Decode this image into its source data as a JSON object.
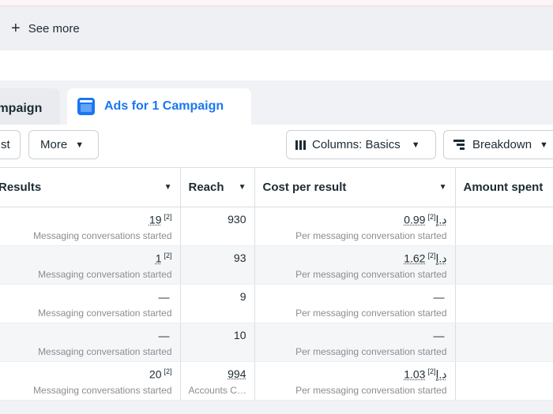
{
  "see_more": {
    "label": "See more"
  },
  "tabs": [
    {
      "label": "Campaign"
    },
    {
      "label": "Ads for 1 Campaign"
    }
  ],
  "toolbar": {
    "first_label": "st",
    "more_label": "More",
    "columns_label": "Columns: Basics",
    "breakdown_label": "Breakdown"
  },
  "table": {
    "headers": {
      "results": "Results",
      "reach": "Reach",
      "cost_per_result": "Cost per result",
      "amount_spent": "Amount spent"
    },
    "rows": [
      {
        "results": "19",
        "results_note": "[2]",
        "results_sub": "Messaging conversations started",
        "reach": "930",
        "reach_sub": "",
        "cost": "0.99د.إ",
        "cost_note": "[2]",
        "cost_sub": "Per messaging conversation started"
      },
      {
        "results": "1",
        "results_note": "[2]",
        "results_sub": "Messaging conversation started",
        "reach": "93",
        "reach_sub": "",
        "cost": "1.62د.إ",
        "cost_note": "[2]",
        "cost_sub": "Per messaging conversation started"
      },
      {
        "results": "—",
        "results_note": "",
        "results_sub": "Messaging conversation started",
        "reach": "9",
        "reach_sub": "",
        "cost": "—",
        "cost_note": "",
        "cost_sub": "Per messaging conversation started"
      },
      {
        "results": "—",
        "results_note": "",
        "results_sub": "Messaging conversation started",
        "reach": "10",
        "reach_sub": "",
        "cost": "—",
        "cost_note": "",
        "cost_sub": "Per messaging conversation started"
      },
      {
        "results": "20",
        "results_note": "[2]",
        "results_sub": "Messaging conversations started",
        "reach": "994",
        "reach_sub": "Accounts C…",
        "cost": "1.03د.إ",
        "cost_note": "[2]",
        "cost_sub": "Per messaging conversation started"
      }
    ]
  },
  "colors": {
    "accent": "#1877f2",
    "text": "#1c2b33",
    "muted": "#8a8d91"
  },
  "icons": {
    "see_more": "plus-icon",
    "tab_ads": "ad-set-icon",
    "columns": "columns-icon",
    "breakdown": "breakdown-icon",
    "dropdown": "caret-down-icon"
  }
}
